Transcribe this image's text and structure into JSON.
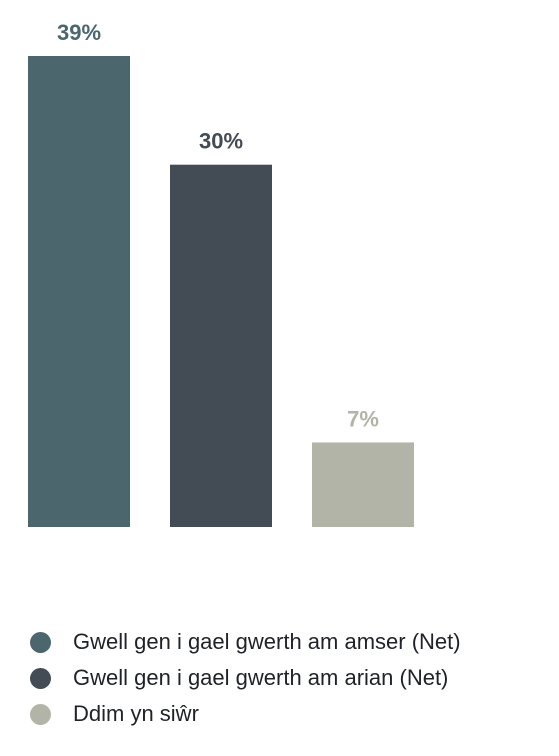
{
  "chart_data": {
    "type": "bar",
    "categories": [
      "Gwell gen i gael gwerth am amser (Net)",
      "Gwell gen i gael gwerth am arian (Net)",
      "Ddim yn siŵr"
    ],
    "values": [
      39,
      30,
      7
    ],
    "data_labels": [
      "39%",
      "30%",
      "7%"
    ],
    "colors": [
      "#4b666d",
      "#434b55",
      "#b2b4a8"
    ],
    "ylim": [
      0,
      39
    ],
    "grid": false,
    "legend": "bottom-left"
  },
  "legend": {
    "items": [
      {
        "label": "Gwell gen i gael gwerth am amser (Net)",
        "color": "#4b666d"
      },
      {
        "label": "Gwell gen i gael gwerth am arian (Net)",
        "color": "#434b55"
      },
      {
        "label": "Ddim yn siŵr",
        "color": "#b2b4a8"
      }
    ]
  }
}
